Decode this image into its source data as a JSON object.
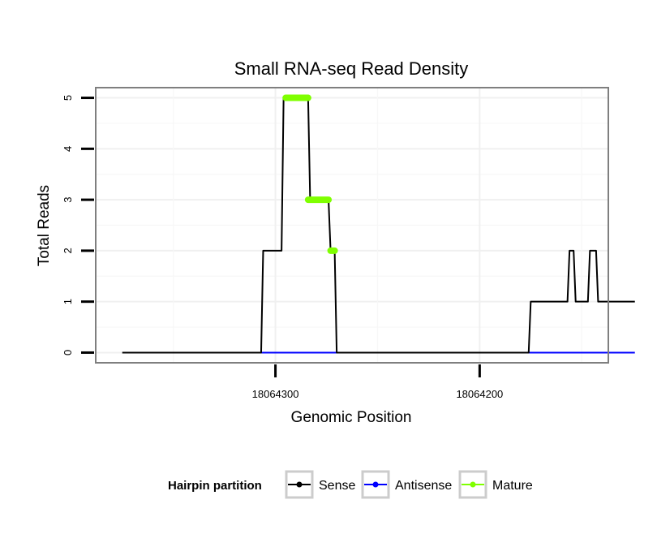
{
  "chart_data": {
    "type": "line",
    "title": "Small RNA-seq Read Density",
    "xlabel": "Genomic Position",
    "ylabel": "Total Reads",
    "x_reversed": true,
    "xlim": [
      18064388,
      18064137
    ],
    "ylim": [
      -0.2,
      5.2
    ],
    "y_ticks": [
      0,
      1,
      2,
      3,
      4,
      5
    ],
    "y_tick_labels": [
      "0",
      "1",
      "2",
      "3",
      "4",
      "5"
    ],
    "x_ticks": [
      18064300,
      18064200
    ],
    "x_tick_labels": [
      "18064300",
      "18064200"
    ],
    "grid": true,
    "legend": {
      "title": "Hairpin partition",
      "position": "bottom",
      "entries": [
        {
          "name": "Sense",
          "color": "#000000"
        },
        {
          "name": "Antisense",
          "color": "#0000ff"
        },
        {
          "name": "Mature",
          "color": "#7fff00"
        }
      ]
    },
    "series": [
      {
        "name": "Sense",
        "color": "#000000",
        "points": [
          [
            18064375,
            0
          ],
          [
            18064307,
            0
          ],
          [
            18064306,
            2
          ],
          [
            18064297,
            2
          ],
          [
            18064296,
            5
          ],
          [
            18064284,
            5
          ],
          [
            18064283,
            3
          ],
          [
            18064274,
            3
          ],
          [
            18064273,
            2
          ],
          [
            18064271,
            2
          ],
          [
            18064270,
            0
          ],
          [
            18064176,
            0
          ],
          [
            18064175,
            1
          ],
          [
            18064157,
            1
          ],
          [
            18064156,
            2
          ],
          [
            18064154,
            2
          ],
          [
            18064153,
            1
          ],
          [
            18064147,
            1
          ],
          [
            18064146,
            2
          ],
          [
            18064143,
            2
          ],
          [
            18064142,
            1
          ],
          [
            18064124,
            1
          ]
        ]
      },
      {
        "name": "Antisense",
        "color": "#0000ff",
        "points": [
          [
            18064307,
            0
          ],
          [
            18064124,
            0
          ]
        ]
      },
      {
        "name": "Mature",
        "color": "#7fff00",
        "segments": [
          {
            "x_start": 18064295,
            "x_end": 18064284,
            "y": 5
          },
          {
            "x_start": 18064284,
            "x_end": 18064274,
            "y": 3
          },
          {
            "x_start": 18064273,
            "x_end": 18064271,
            "y": 2
          }
        ]
      }
    ]
  }
}
